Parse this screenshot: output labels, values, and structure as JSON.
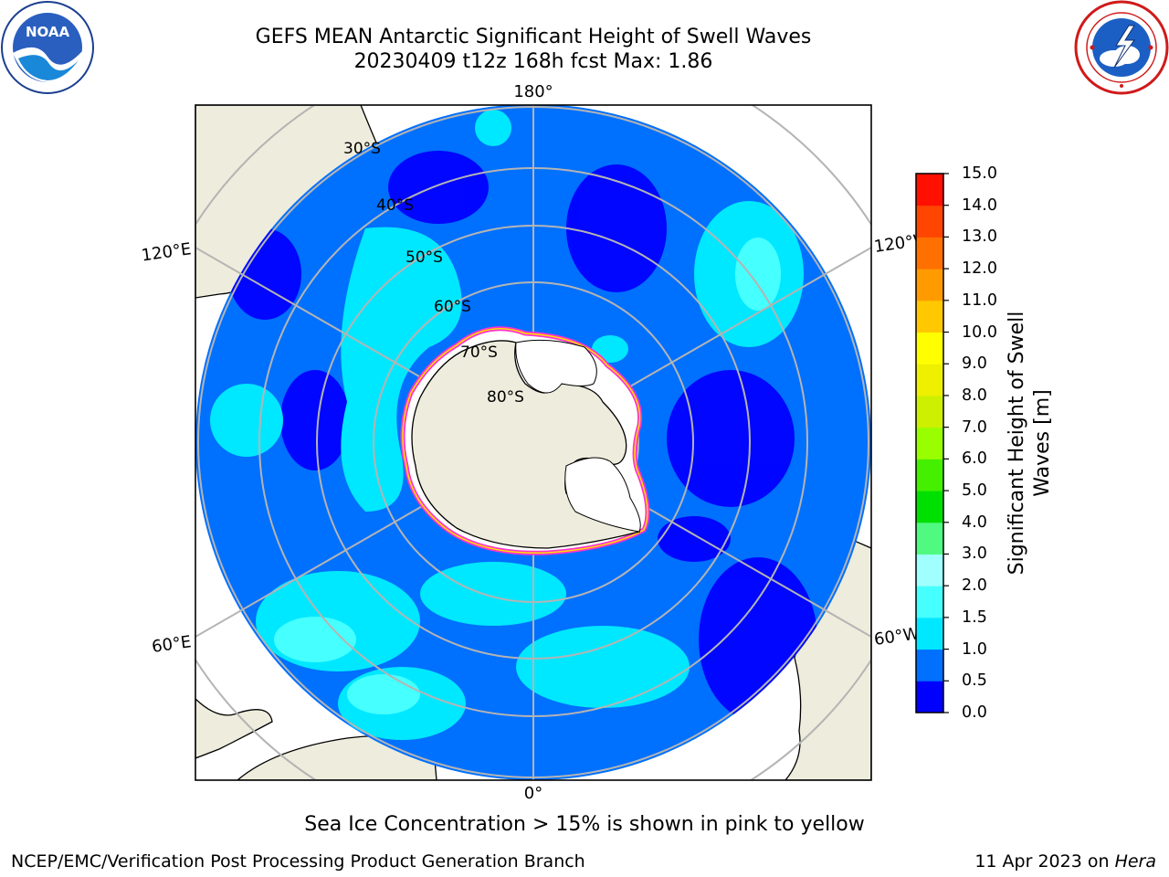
{
  "header": {
    "title_line1": "GEFS MEAN Antarctic Significant Height of Swell Waves",
    "title_line2": "20230409 t12z 168h fcst   Max: 1.86"
  },
  "logos": {
    "noaa": {
      "icon": "noaa-logo-icon",
      "text": "NOAA"
    },
    "nws": {
      "icon": "nws-logo-icon"
    }
  },
  "map": {
    "projection": "south-polar-stereographic",
    "longitude_labels": {
      "top": "180°",
      "bottom": "0°",
      "upper_left": "120°E",
      "upper_right": "120°W",
      "lower_left": "60°E",
      "lower_right": "60°W"
    },
    "latitude_labels": [
      "30°S",
      "40°S",
      "50°S",
      "60°S",
      "70°S",
      "80°S"
    ],
    "colors": {
      "land": "#eeecdc",
      "ice_shelf": "#ffffff",
      "sea_ice_edge": "#ff33cc",
      "graticule": "#b4b4b4"
    }
  },
  "colorbar": {
    "label_line1": "Significant Height of Swell",
    "label_line2": "Waves [m]",
    "ticks": [
      "0.0",
      "0.5",
      "1.0",
      "1.5",
      "2.0",
      "3.0",
      "4.0",
      "5.0",
      "6.0",
      "7.0",
      "8.0",
      "9.0",
      "10.0",
      "11.0",
      "12.0",
      "13.0",
      "14.0",
      "15.0"
    ],
    "colors": [
      "#0000ff",
      "#0070ff",
      "#00e8ff",
      "#46ffff",
      "#a0ffff",
      "#50fa80",
      "#00e000",
      "#44f000",
      "#99ff00",
      "#ccf000",
      "#eef000",
      "#ffff00",
      "#ffc800",
      "#ff9b00",
      "#ff7000",
      "#ff4500",
      "#ff1000"
    ]
  },
  "footer": {
    "note": "Sea Ice Concentration > 15% is shown in pink to yellow",
    "credit": "NCEP/EMC/Verification Post Processing Product Generation Branch",
    "date": "11 Apr 2023 on",
    "machine": "Hera"
  }
}
